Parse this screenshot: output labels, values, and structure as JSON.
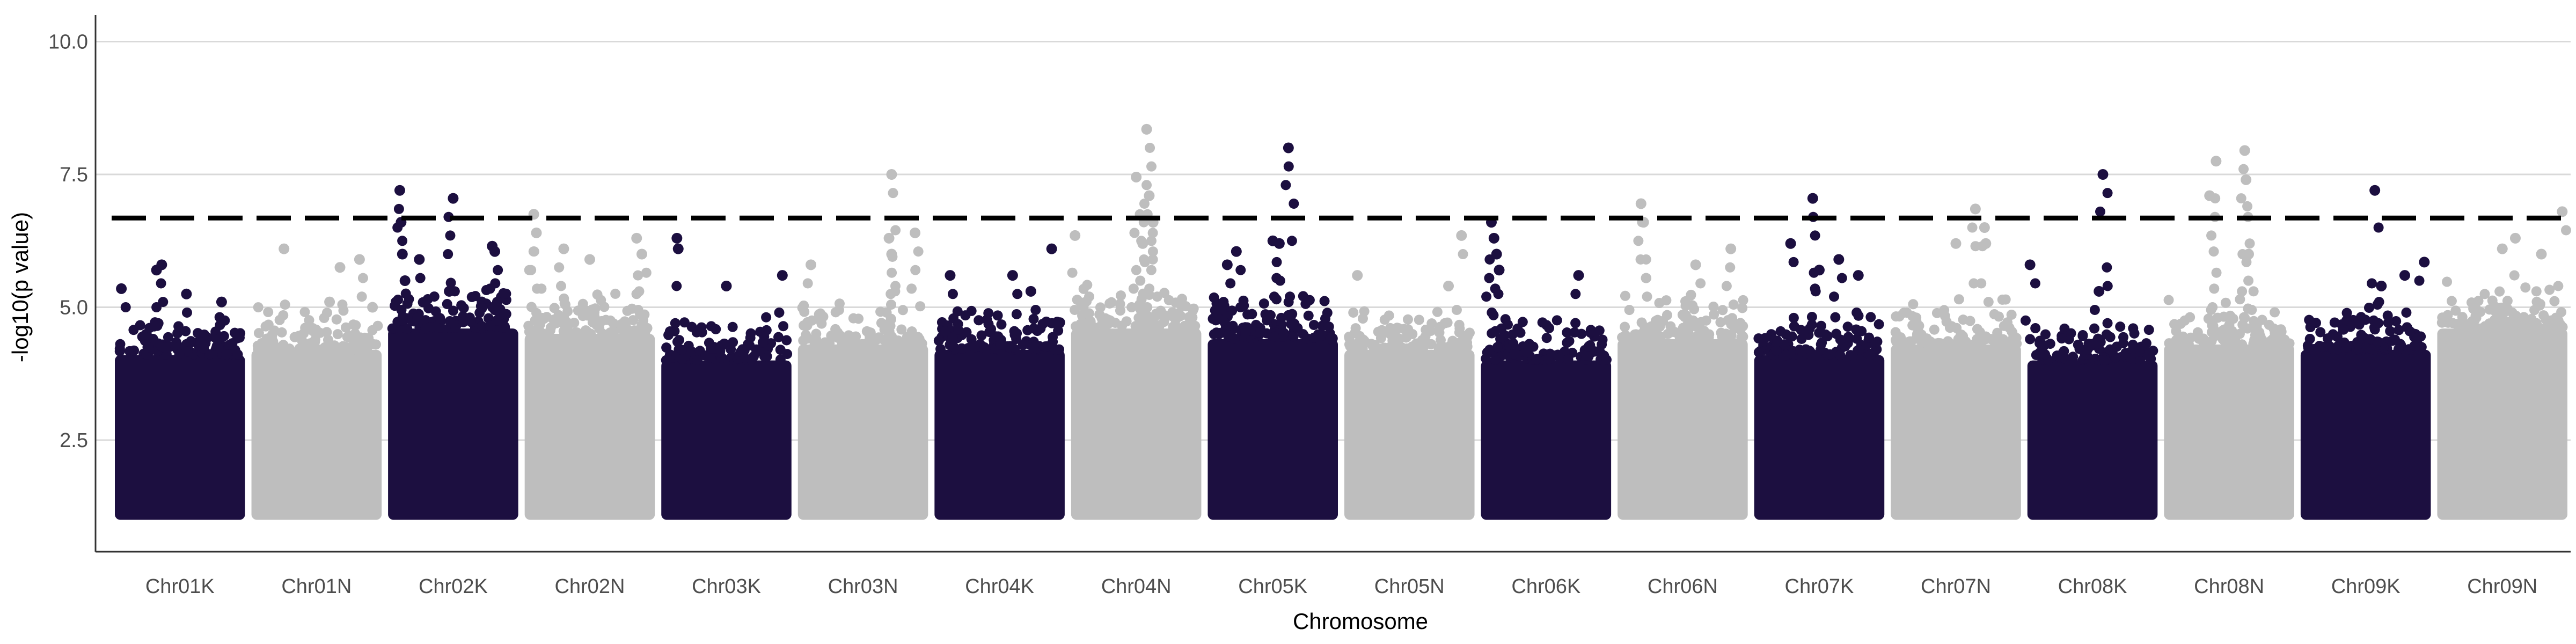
{
  "chart_data": {
    "type": "scatter",
    "title": "",
    "xlabel": "Chromosome",
    "ylabel": "-log10(p value)",
    "ylim": [
      0.4,
      10.5
    ],
    "yticks": [
      2.5,
      5.0,
      7.5,
      10.0
    ],
    "ytick_labels": [
      "2.5",
      "5.0",
      "7.5",
      "10.0"
    ],
    "threshold": 6.68,
    "grid": "horizontal major lines",
    "legend": "none",
    "colors": {
      "dark": "#1c0f40",
      "light": "#bebebe",
      "threshold_line": "#000000",
      "grid": "#d9d9d9",
      "axis": "#333333"
    },
    "categories": [
      "Chr01K",
      "Chr01N",
      "Chr02K",
      "Chr02N",
      "Chr03K",
      "Chr03N",
      "Chr04K",
      "Chr04N",
      "Chr05K",
      "Chr05N",
      "Chr06K",
      "Chr06N",
      "Chr07K",
      "Chr07N",
      "Chr08K",
      "Chr08N",
      "Chr09K",
      "Chr09N"
    ],
    "chromosomes": [
      {
        "name": "Chr01K",
        "color": "dark",
        "base_top": 4.1,
        "peaks": [
          {
            "pos": 0.05,
            "value": 5.35
          },
          {
            "pos": 0.32,
            "value": 5.7
          },
          {
            "pos": 0.36,
            "value": 5.8
          },
          {
            "pos": 0.55,
            "value": 5.25
          },
          {
            "pos": 0.82,
            "value": 5.1
          }
        ]
      },
      {
        "name": "Chr01N",
        "color": "light",
        "base_top": 4.2,
        "peaks": [
          {
            "pos": 0.25,
            "value": 6.1
          },
          {
            "pos": 0.6,
            "value": 5.1
          },
          {
            "pos": 0.68,
            "value": 5.75
          },
          {
            "pos": 0.83,
            "value": 5.9
          },
          {
            "pos": 0.93,
            "value": 5.0
          }
        ]
      },
      {
        "name": "Chr02K",
        "color": "dark",
        "base_top": 4.6,
        "peaks": [
          {
            "pos": 0.09,
            "value": 7.2
          },
          {
            "pos": 0.1,
            "value": 6.6
          },
          {
            "pos": 0.11,
            "value": 6.0
          },
          {
            "pos": 0.13,
            "value": 5.5
          },
          {
            "pos": 0.24,
            "value": 5.9
          },
          {
            "pos": 0.47,
            "value": 5.3
          },
          {
            "pos": 0.5,
            "value": 7.05
          },
          {
            "pos": 0.8,
            "value": 6.15
          },
          {
            "pos": 0.82,
            "value": 6.05
          }
        ]
      },
      {
        "name": "Chr02N",
        "color": "light",
        "base_top": 4.5,
        "peaks": [
          {
            "pos": 0.07,
            "value": 6.75
          },
          {
            "pos": 0.09,
            "value": 6.4
          },
          {
            "pos": 0.3,
            "value": 6.1
          },
          {
            "pos": 0.5,
            "value": 5.9
          },
          {
            "pos": 0.86,
            "value": 6.3
          },
          {
            "pos": 0.9,
            "value": 6.0
          }
        ]
      },
      {
        "name": "Chr03K",
        "color": "dark",
        "base_top": 4.0,
        "peaks": [
          {
            "pos": 0.12,
            "value": 6.3
          },
          {
            "pos": 0.13,
            "value": 6.1
          },
          {
            "pos": 0.5,
            "value": 5.4
          },
          {
            "pos": 0.93,
            "value": 5.6
          }
        ]
      },
      {
        "name": "Chr03N",
        "color": "light",
        "base_top": 4.3,
        "peaks": [
          {
            "pos": 0.1,
            "value": 5.8
          },
          {
            "pos": 0.72,
            "value": 7.5
          },
          {
            "pos": 0.7,
            "value": 6.3
          },
          {
            "pos": 0.72,
            "value": 6.0
          },
          {
            "pos": 0.9,
            "value": 6.4
          }
        ]
      },
      {
        "name": "Chr04K",
        "color": "dark",
        "base_top": 4.2,
        "peaks": [
          {
            "pos": 0.12,
            "value": 5.6
          },
          {
            "pos": 0.6,
            "value": 5.6
          },
          {
            "pos": 0.74,
            "value": 5.3
          },
          {
            "pos": 0.9,
            "value": 6.1
          }
        ]
      },
      {
        "name": "Chr04N",
        "color": "light",
        "base_top": 4.6,
        "peaks": [
          {
            "pos": 0.03,
            "value": 6.35
          },
          {
            "pos": 0.5,
            "value": 7.45
          },
          {
            "pos": 0.58,
            "value": 8.35
          },
          {
            "pos": 0.6,
            "value": 7.1
          },
          {
            "pos": 0.63,
            "value": 6.6
          },
          {
            "pos": 0.55,
            "value": 6.2
          }
        ]
      },
      {
        "name": "Chr05K",
        "color": "dark",
        "base_top": 4.4,
        "peaks": [
          {
            "pos": 0.15,
            "value": 5.8
          },
          {
            "pos": 0.22,
            "value": 6.05
          },
          {
            "pos": 0.5,
            "value": 6.25
          },
          {
            "pos": 0.55,
            "value": 6.2
          },
          {
            "pos": 0.62,
            "value": 8.0
          }
        ]
      },
      {
        "name": "Chr05N",
        "color": "light",
        "base_top": 4.2,
        "peaks": [
          {
            "pos": 0.1,
            "value": 5.6
          },
          {
            "pos": 0.9,
            "value": 6.35
          },
          {
            "pos": 0.8,
            "value": 5.4
          }
        ]
      },
      {
        "name": "Chr06K",
        "color": "dark",
        "base_top": 4.0,
        "peaks": [
          {
            "pos": 0.08,
            "value": 6.6
          },
          {
            "pos": 0.1,
            "value": 6.3
          },
          {
            "pos": 0.12,
            "value": 6.0
          },
          {
            "pos": 0.14,
            "value": 5.7
          },
          {
            "pos": 0.75,
            "value": 5.6
          }
        ]
      },
      {
        "name": "Chr06N",
        "color": "light",
        "base_top": 4.4,
        "peaks": [
          {
            "pos": 0.18,
            "value": 6.95
          },
          {
            "pos": 0.2,
            "value": 6.6
          },
          {
            "pos": 0.6,
            "value": 5.8
          },
          {
            "pos": 0.87,
            "value": 6.1
          }
        ]
      },
      {
        "name": "Chr07K",
        "color": "dark",
        "base_top": 4.1,
        "peaks": [
          {
            "pos": 0.28,
            "value": 6.2
          },
          {
            "pos": 0.45,
            "value": 7.05
          },
          {
            "pos": 0.5,
            "value": 5.7
          },
          {
            "pos": 0.65,
            "value": 5.9
          },
          {
            "pos": 0.8,
            "value": 5.6
          }
        ]
      },
      {
        "name": "Chr07N",
        "color": "light",
        "base_top": 4.3,
        "peaks": [
          {
            "pos": 0.5,
            "value": 6.2
          },
          {
            "pos": 0.65,
            "value": 6.85
          },
          {
            "pos": 0.72,
            "value": 6.5
          },
          {
            "pos": 0.73,
            "value": 6.2
          }
        ]
      },
      {
        "name": "Chr08K",
        "color": "dark",
        "base_top": 4.0,
        "peaks": [
          {
            "pos": 0.02,
            "value": 5.8
          },
          {
            "pos": 0.55,
            "value": 5.3
          },
          {
            "pos": 0.58,
            "value": 7.5
          }
        ]
      },
      {
        "name": "Chr08N",
        "color": "light",
        "base_top": 4.3,
        "peaks": [
          {
            "pos": 0.35,
            "value": 7.1
          },
          {
            "pos": 0.4,
            "value": 7.75
          },
          {
            "pos": 0.62,
            "value": 7.95
          },
          {
            "pos": 0.63,
            "value": 7.4
          },
          {
            "pos": 0.65,
            "value": 6.0
          }
        ]
      },
      {
        "name": "Chr09K",
        "color": "dark",
        "base_top": 4.2,
        "peaks": [
          {
            "pos": 0.57,
            "value": 7.2
          },
          {
            "pos": 0.62,
            "value": 5.4
          },
          {
            "pos": 0.8,
            "value": 5.6
          },
          {
            "pos": 0.95,
            "value": 5.85
          }
        ]
      },
      {
        "name": "Chr09N",
        "color": "light",
        "base_top": 4.6,
        "peaks": [
          {
            "pos": 0.5,
            "value": 6.1
          },
          {
            "pos": 0.6,
            "value": 6.3
          },
          {
            "pos": 0.8,
            "value": 6.0
          },
          {
            "pos": 0.96,
            "value": 6.8
          }
        ]
      }
    ]
  }
}
